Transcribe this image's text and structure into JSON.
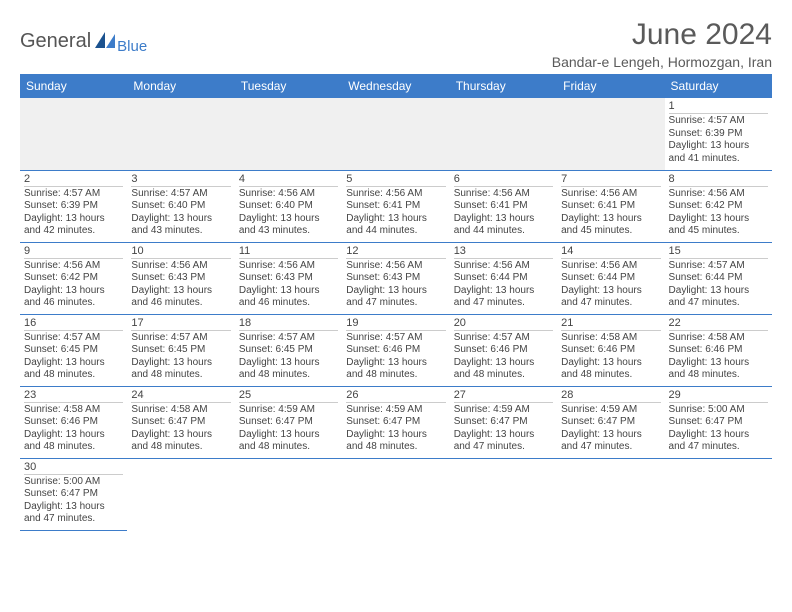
{
  "logo": {
    "text": "General",
    "blue": "Blue"
  },
  "title": "June 2024",
  "location": "Bandar-e Lengeh, Hormozgan, Iran",
  "weekdays": [
    "Sunday",
    "Monday",
    "Tuesday",
    "Wednesday",
    "Thursday",
    "Friday",
    "Saturday"
  ],
  "colors": {
    "header_bg": "#3d7cc9",
    "header_fg": "#ffffff",
    "border": "#3d7cc9",
    "empty_bg": "#f0f0f0",
    "text": "#444444"
  },
  "labels": {
    "sunrise": "Sunrise:",
    "sunset": "Sunset:",
    "daylight": "Daylight:"
  },
  "leading_blanks": 6,
  "days": [
    {
      "n": 1,
      "sr": "4:57 AM",
      "ss": "6:39 PM",
      "dl": "13 hours and 41 minutes."
    },
    {
      "n": 2,
      "sr": "4:57 AM",
      "ss": "6:39 PM",
      "dl": "13 hours and 42 minutes."
    },
    {
      "n": 3,
      "sr": "4:57 AM",
      "ss": "6:40 PM",
      "dl": "13 hours and 43 minutes."
    },
    {
      "n": 4,
      "sr": "4:56 AM",
      "ss": "6:40 PM",
      "dl": "13 hours and 43 minutes."
    },
    {
      "n": 5,
      "sr": "4:56 AM",
      "ss": "6:41 PM",
      "dl": "13 hours and 44 minutes."
    },
    {
      "n": 6,
      "sr": "4:56 AM",
      "ss": "6:41 PM",
      "dl": "13 hours and 44 minutes."
    },
    {
      "n": 7,
      "sr": "4:56 AM",
      "ss": "6:41 PM",
      "dl": "13 hours and 45 minutes."
    },
    {
      "n": 8,
      "sr": "4:56 AM",
      "ss": "6:42 PM",
      "dl": "13 hours and 45 minutes."
    },
    {
      "n": 9,
      "sr": "4:56 AM",
      "ss": "6:42 PM",
      "dl": "13 hours and 46 minutes."
    },
    {
      "n": 10,
      "sr": "4:56 AM",
      "ss": "6:43 PM",
      "dl": "13 hours and 46 minutes."
    },
    {
      "n": 11,
      "sr": "4:56 AM",
      "ss": "6:43 PM",
      "dl": "13 hours and 46 minutes."
    },
    {
      "n": 12,
      "sr": "4:56 AM",
      "ss": "6:43 PM",
      "dl": "13 hours and 47 minutes."
    },
    {
      "n": 13,
      "sr": "4:56 AM",
      "ss": "6:44 PM",
      "dl": "13 hours and 47 minutes."
    },
    {
      "n": 14,
      "sr": "4:56 AM",
      "ss": "6:44 PM",
      "dl": "13 hours and 47 minutes."
    },
    {
      "n": 15,
      "sr": "4:57 AM",
      "ss": "6:44 PM",
      "dl": "13 hours and 47 minutes."
    },
    {
      "n": 16,
      "sr": "4:57 AM",
      "ss": "6:45 PM",
      "dl": "13 hours and 48 minutes."
    },
    {
      "n": 17,
      "sr": "4:57 AM",
      "ss": "6:45 PM",
      "dl": "13 hours and 48 minutes."
    },
    {
      "n": 18,
      "sr": "4:57 AM",
      "ss": "6:45 PM",
      "dl": "13 hours and 48 minutes."
    },
    {
      "n": 19,
      "sr": "4:57 AM",
      "ss": "6:46 PM",
      "dl": "13 hours and 48 minutes."
    },
    {
      "n": 20,
      "sr": "4:57 AM",
      "ss": "6:46 PM",
      "dl": "13 hours and 48 minutes."
    },
    {
      "n": 21,
      "sr": "4:58 AM",
      "ss": "6:46 PM",
      "dl": "13 hours and 48 minutes."
    },
    {
      "n": 22,
      "sr": "4:58 AM",
      "ss": "6:46 PM",
      "dl": "13 hours and 48 minutes."
    },
    {
      "n": 23,
      "sr": "4:58 AM",
      "ss": "6:46 PM",
      "dl": "13 hours and 48 minutes."
    },
    {
      "n": 24,
      "sr": "4:58 AM",
      "ss": "6:47 PM",
      "dl": "13 hours and 48 minutes."
    },
    {
      "n": 25,
      "sr": "4:59 AM",
      "ss": "6:47 PM",
      "dl": "13 hours and 48 minutes."
    },
    {
      "n": 26,
      "sr": "4:59 AM",
      "ss": "6:47 PM",
      "dl": "13 hours and 48 minutes."
    },
    {
      "n": 27,
      "sr": "4:59 AM",
      "ss": "6:47 PM",
      "dl": "13 hours and 47 minutes."
    },
    {
      "n": 28,
      "sr": "4:59 AM",
      "ss": "6:47 PM",
      "dl": "13 hours and 47 minutes."
    },
    {
      "n": 29,
      "sr": "5:00 AM",
      "ss": "6:47 PM",
      "dl": "13 hours and 47 minutes."
    },
    {
      "n": 30,
      "sr": "5:00 AM",
      "ss": "6:47 PM",
      "dl": "13 hours and 47 minutes."
    }
  ]
}
